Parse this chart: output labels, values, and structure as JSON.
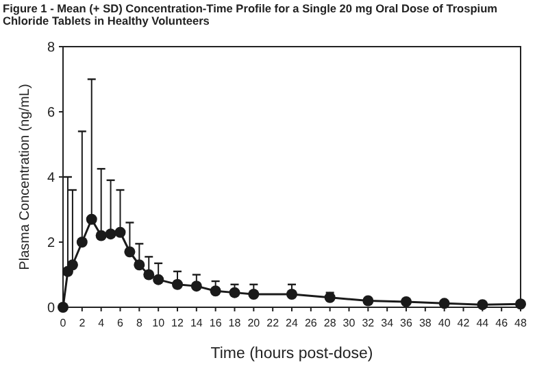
{
  "chart_data": {
    "type": "line",
    "title": "Figure 1 - Mean (+ SD) Concentration-Time Profile for a Single 20 mg Oral Dose of Trospium Chloride Tablets in Healthy Volunteers",
    "xlabel": "Time (hours post-dose)",
    "ylabel": "Plasma Concentration (ng/mL)",
    "x": [
      0,
      0.5,
      1,
      2,
      3,
      4,
      5,
      6,
      7,
      8,
      9,
      10,
      12,
      14,
      16,
      18,
      20,
      24,
      28,
      32,
      36,
      40,
      44,
      48
    ],
    "series": [
      {
        "color": "#1a1a1a",
        "values": [
          0,
          1.1,
          1.3,
          2.0,
          2.7,
          2.2,
          2.25,
          2.3,
          1.7,
          1.3,
          1.0,
          0.85,
          0.7,
          0.65,
          0.5,
          0.45,
          0.4,
          0.4,
          0.3,
          0.2,
          0.17,
          0.12,
          0.08,
          0.1
        ],
        "errors": [
          null,
          [
            1.1,
            4.0
          ],
          [
            1.3,
            3.6
          ],
          [
            2.0,
            5.4
          ],
          [
            2.7,
            7.0
          ],
          [
            2.2,
            4.25
          ],
          [
            2.25,
            3.9
          ],
          [
            2.3,
            3.6
          ],
          [
            1.7,
            2.6
          ],
          [
            1.3,
            1.95
          ],
          [
            1.0,
            1.55
          ],
          [
            0.85,
            1.35
          ],
          [
            0.7,
            1.1
          ],
          [
            0.65,
            1.0
          ],
          [
            0.5,
            0.8
          ],
          [
            0.45,
            0.7
          ],
          [
            0.4,
            0.7
          ],
          [
            0.4,
            0.7
          ],
          [
            0.3,
            0.45
          ],
          null,
          null,
          null,
          null,
          null
        ]
      }
    ],
    "xlim": [
      0,
      48
    ],
    "xticks": [
      0,
      2,
      4,
      6,
      8,
      10,
      12,
      14,
      16,
      18,
      20,
      22,
      24,
      26,
      28,
      30,
      32,
      34,
      36,
      38,
      40,
      42,
      44,
      46,
      48
    ],
    "ylim": [
      0,
      8
    ],
    "yticks": [
      0,
      2,
      4,
      6,
      8
    ],
    "grid": false,
    "marker": "circle",
    "line_style": "solid"
  }
}
